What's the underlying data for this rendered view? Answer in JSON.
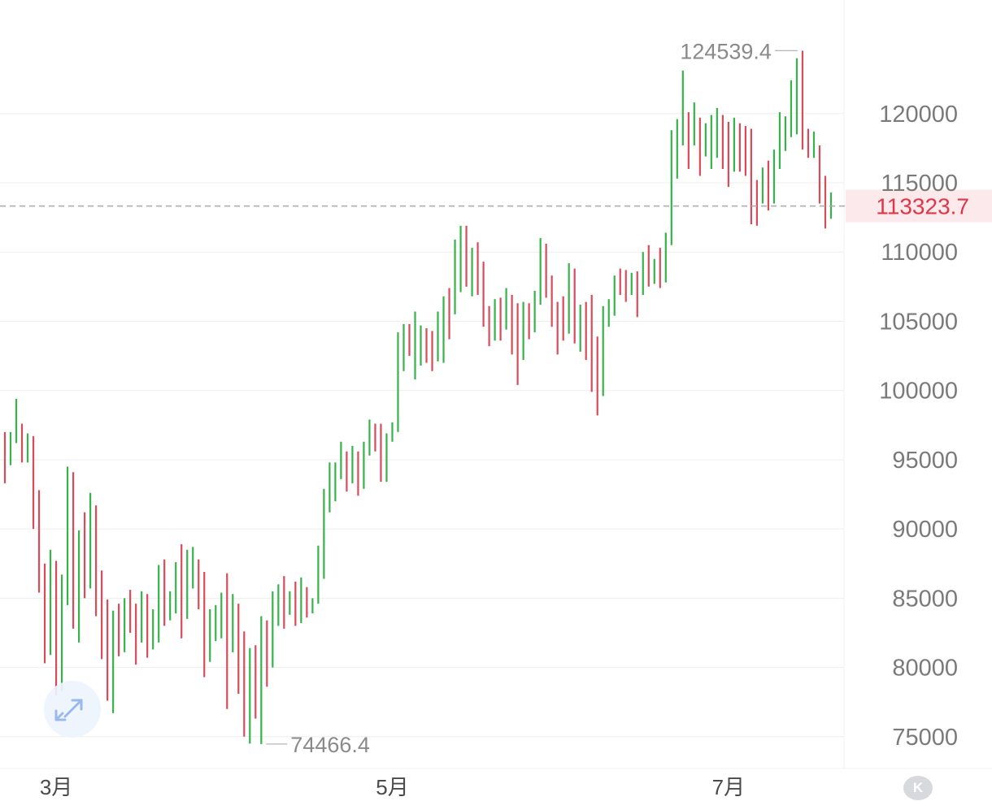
{
  "chart_data": {
    "type": "ohlc",
    "y_axis": {
      "ticks": [
        "75000",
        "80000",
        "85000",
        "90000",
        "95000",
        "100000",
        "105000",
        "110000",
        "115000",
        "120000"
      ],
      "range": [
        72700,
        128200
      ],
      "position": "right"
    },
    "x_axis": {
      "ticks": [
        "3月",
        "5月",
        "7月"
      ]
    },
    "current_price": {
      "value": 113323.7,
      "label": "113323.7",
      "color": "#e0364a"
    },
    "max_marker": {
      "value": 124539.4,
      "label": "124539.4"
    },
    "min_marker": {
      "value": 74466.4,
      "label": "74466.4"
    },
    "colors": {
      "up": "#36b34a",
      "down": "#d94a5a",
      "grid": "#eeeeee"
    },
    "grid": true,
    "bars": [
      [
        97000,
        97000,
        93300,
        95400
      ],
      [
        95300,
        97000,
        94600,
        96600
      ],
      [
        96600,
        99400,
        96200,
        97100
      ],
      [
        97100,
        97600,
        94800,
        95100
      ],
      [
        95100,
        96900,
        94800,
        96400
      ],
      [
        96400,
        96700,
        90000,
        91200
      ],
      [
        91200,
        92800,
        85400,
        86000
      ],
      [
        86000,
        87500,
        80300,
        82000
      ],
      [
        82000,
        88500,
        80900,
        86900
      ],
      [
        86900,
        87700,
        78000,
        78500
      ],
      [
        78500,
        86700,
        78300,
        86000
      ],
      [
        86000,
        94500,
        84500,
        92500
      ],
      [
        92500,
        94100,
        82800,
        85000
      ],
      [
        85000,
        89900,
        81800,
        88900
      ],
      [
        88900,
        91200,
        85000,
        86200
      ],
      [
        86200,
        92600,
        85700,
        91000
      ],
      [
        91000,
        91700,
        83700,
        84500
      ],
      [
        84500,
        87000,
        80600,
        82700
      ],
      [
        82700,
        84900,
        77600,
        78400
      ],
      [
        78400,
        84100,
        76700,
        83900
      ],
      [
        83900,
        84600,
        80800,
        82000
      ],
      [
        82000,
        85000,
        81100,
        84700
      ],
      [
        84700,
        85600,
        82500,
        84000
      ],
      [
        84000,
        84600,
        80200,
        82600
      ],
      [
        82600,
        85500,
        81800,
        84700
      ],
      [
        84700,
        85300,
        80700,
        82600
      ],
      [
        82600,
        84200,
        81300,
        83600
      ],
      [
        83600,
        87400,
        81800,
        86800
      ],
      [
        86800,
        87800,
        83000,
        84100
      ],
      [
        84100,
        85500,
        83400,
        84300
      ],
      [
        84300,
        87600,
        83900,
        86900
      ],
      [
        86900,
        88900,
        82100,
        84200
      ],
      [
        84200,
        88500,
        83500,
        86700
      ],
      [
        86700,
        88700,
        85700,
        86800
      ],
      [
        86800,
        87800,
        84200,
        85500
      ],
      [
        85500,
        86900,
        79300,
        81500
      ],
      [
        81500,
        84200,
        80400,
        82600
      ],
      [
        82600,
        84500,
        81900,
        83400
      ],
      [
        83400,
        85400,
        82100,
        83800
      ],
      [
        83800,
        86800,
        77000,
        81500
      ],
      [
        81500,
        85300,
        81100,
        83800
      ],
      [
        83800,
        84600,
        78100,
        82200
      ],
      [
        82200,
        82600,
        75000,
        76600
      ],
      [
        76600,
        81400,
        74500,
        79500
      ],
      [
        79500,
        81600,
        76300,
        77000
      ],
      [
        77000,
        83700,
        74466.4,
        83000
      ],
      [
        83000,
        83400,
        78600,
        80400
      ],
      [
        80400,
        85500,
        80000,
        84000
      ],
      [
        84000,
        86000,
        83000,
        85300
      ],
      [
        85300,
        86600,
        82800,
        84100
      ],
      [
        84100,
        85500,
        83800,
        84900
      ],
      [
        84900,
        86200,
        83000,
        83700
      ],
      [
        83700,
        86500,
        83200,
        85600
      ],
      [
        85600,
        85800,
        83600,
        84600
      ],
      [
        84600,
        85000,
        83900,
        84600
      ],
      [
        84600,
        88800,
        84600,
        87400
      ],
      [
        87400,
        92900,
        86400,
        91300
      ],
      [
        91300,
        94800,
        91200,
        93400
      ],
      [
        93400,
        94800,
        92000,
        94400
      ],
      [
        94400,
        96300,
        93600,
        94700
      ],
      [
        94700,
        95600,
        92700,
        93700
      ],
      [
        93700,
        96000,
        93300,
        94200
      ],
      [
        94200,
        95600,
        92400,
        94000
      ],
      [
        94000,
        96300,
        92900,
        96200
      ],
      [
        96200,
        97900,
        95300,
        96800
      ],
      [
        96800,
        97600,
        95600,
        96600
      ],
      [
        96600,
        97600,
        93400,
        94700
      ],
      [
        94700,
        96900,
        93400,
        96500
      ],
      [
        96500,
        97700,
        96300,
        97400
      ],
      [
        97400,
        104200,
        97000,
        103200
      ],
      [
        103200,
        104800,
        101400,
        104000
      ],
      [
        104000,
        104800,
        102500,
        102800
      ],
      [
        102800,
        105700,
        100800,
        103000
      ],
      [
        103000,
        104700,
        101800,
        104300
      ],
      [
        104300,
        104500,
        102000,
        103600
      ],
      [
        103600,
        104300,
        101400,
        102900
      ],
      [
        102900,
        105700,
        102100,
        104900
      ],
      [
        104900,
        106800,
        102000,
        106500
      ],
      [
        106500,
        107400,
        103700,
        105700
      ],
      [
        105700,
        110900,
        105500,
        109600
      ],
      [
        109600,
        111900,
        107100,
        111600
      ],
      [
        111600,
        111900,
        107500,
        108800
      ],
      [
        108800,
        110300,
        106800,
        109400
      ],
      [
        109400,
        110700,
        106900,
        107700
      ],
      [
        107700,
        109300,
        104600,
        105600
      ],
      [
        105600,
        106100,
        103200,
        104600
      ],
      [
        104600,
        106600,
        103600,
        105700
      ],
      [
        105700,
        106700,
        103600,
        104700
      ],
      [
        104700,
        107400,
        104400,
        106800
      ],
      [
        106800,
        106900,
        102600,
        105300
      ],
      [
        105300,
        106300,
        100400,
        102300
      ],
      [
        102300,
        106400,
        102200,
        105600
      ],
      [
        105600,
        106300,
        103700,
        104900
      ],
      [
        104900,
        107200,
        104200,
        106300
      ],
      [
        106300,
        111000,
        106200,
        109900
      ],
      [
        109900,
        110600,
        106700,
        107500
      ],
      [
        107500,
        108300,
        104600,
        105600
      ],
      [
        105600,
        106400,
        102600,
        104700
      ],
      [
        104700,
        106800,
        103600,
        104500
      ],
      [
        104500,
        109200,
        104100,
        108600
      ],
      [
        108600,
        108800,
        103400,
        104500
      ],
      [
        104500,
        106200,
        102800,
        105600
      ],
      [
        105600,
        106400,
        102200,
        104800
      ],
      [
        104800,
        106900,
        99900,
        101500
      ],
      [
        101500,
        103900,
        98200,
        100900
      ],
      [
        100900,
        106100,
        99600,
        104800
      ],
      [
        104800,
        106600,
        104600,
        105800
      ],
      [
        105800,
        108300,
        105400,
        107600
      ],
      [
        107600,
        108800,
        106900,
        107500
      ],
      [
        107500,
        108700,
        106400,
        107200
      ],
      [
        107200,
        108500,
        106900,
        108500
      ],
      [
        108500,
        108600,
        105300,
        107200
      ],
      [
        107200,
        110000,
        106900,
        109600
      ],
      [
        109600,
        110500,
        107500,
        108100
      ],
      [
        108100,
        109500,
        107700,
        108900
      ],
      [
        108900,
        110300,
        107400,
        108500
      ],
      [
        108500,
        111400,
        107800,
        110900
      ],
      [
        110900,
        118800,
        110500,
        117700
      ],
      [
        117700,
        119600,
        115300,
        118600
      ],
      [
        118600,
        123100,
        117700,
        119200
      ],
      [
        119200,
        120100,
        116000,
        118600
      ],
      [
        118600,
        120800,
        117700,
        119200
      ],
      [
        119200,
        119700,
        115500,
        117300
      ],
      [
        117300,
        119300,
        116900,
        117800
      ],
      [
        117800,
        119900,
        116000,
        118300
      ],
      [
        118300,
        120400,
        116800,
        119500
      ],
      [
        119500,
        119900,
        116000,
        117400
      ],
      [
        117400,
        119400,
        114700,
        116000
      ],
      [
        116000,
        119700,
        115800,
        119300
      ],
      [
        119300,
        119300,
        115800,
        118700
      ],
      [
        118700,
        119100,
        115500,
        118200
      ],
      [
        118200,
        118900,
        112000,
        114300
      ],
      [
        114300,
        115200,
        111900,
        113800
      ],
      [
        113800,
        116100,
        113500,
        115000
      ],
      [
        115000,
        116600,
        113000,
        114300
      ],
      [
        114300,
        117400,
        113500,
        116800
      ],
      [
        116800,
        120100,
        116000,
        117800
      ],
      [
        117800,
        119800,
        117300,
        119300
      ],
      [
        119300,
        122400,
        118300,
        120000
      ],
      [
        120000,
        124000,
        118500,
        123500
      ],
      [
        123500,
        124539.4,
        117400,
        118300
      ],
      [
        118300,
        118900,
        116800,
        117500
      ],
      [
        117500,
        118700,
        116800,
        117500
      ],
      [
        117500,
        117700,
        113500,
        115000
      ],
      [
        115000,
        115500,
        111700,
        112700
      ],
      [
        112700,
        114300,
        112400,
        113323.7
      ]
    ]
  }
}
